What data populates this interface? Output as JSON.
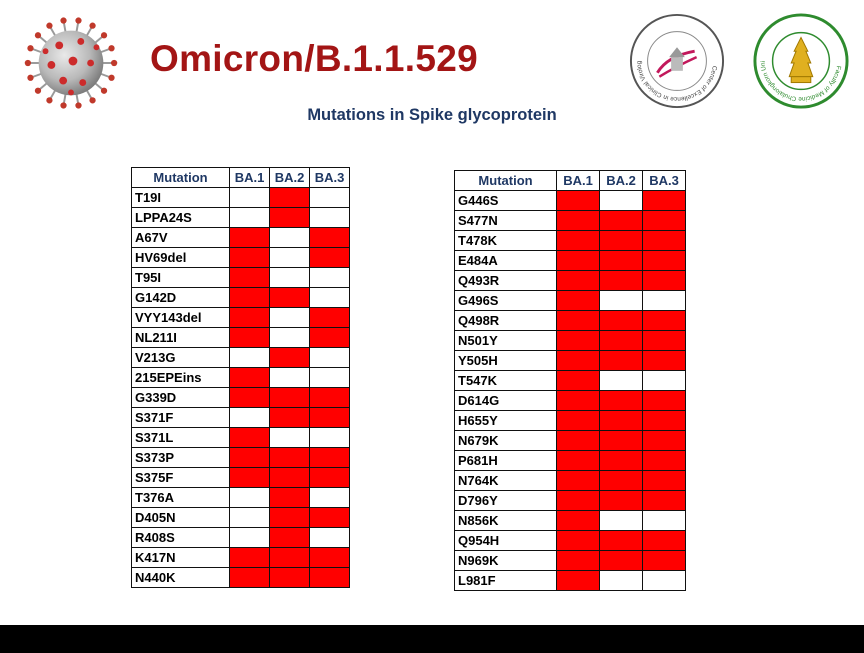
{
  "title": "Omicron/B.1.1.529",
  "subtitle": "Mutations in Spike glycoprotein",
  "colors": {
    "present": "#ff0000",
    "absent": "#ffffff",
    "title": "#a31515",
    "header": "#1f3864"
  },
  "logos": [
    {
      "icon": "virus-icon"
    },
    {
      "icon": "clinical-virology-seal",
      "text": "Center of Excellence in Clinical Virology"
    },
    {
      "icon": "chulalongkorn-medicine-seal",
      "text": "Faculty of Medicine Chulalongkorn University"
    }
  ],
  "columns": [
    "Mutation",
    "BA.1",
    "BA.2",
    "BA.3"
  ],
  "tables": [
    {
      "rows": [
        {
          "mutation": "T19I",
          "present": [
            0,
            1,
            0
          ]
        },
        {
          "mutation": "LPPA24S",
          "present": [
            0,
            1,
            0
          ]
        },
        {
          "mutation": "A67V",
          "present": [
            1,
            0,
            1
          ]
        },
        {
          "mutation": "HV69del",
          "present": [
            1,
            0,
            1
          ]
        },
        {
          "mutation": "T95I",
          "present": [
            1,
            0,
            0
          ]
        },
        {
          "mutation": "G142D",
          "present": [
            1,
            1,
            0
          ]
        },
        {
          "mutation": "VYY143del",
          "present": [
            1,
            0,
            1
          ]
        },
        {
          "mutation": "NL211I",
          "present": [
            1,
            0,
            1
          ]
        },
        {
          "mutation": "V213G",
          "present": [
            0,
            1,
            0
          ]
        },
        {
          "mutation": "215EPEins",
          "present": [
            1,
            0,
            0
          ]
        },
        {
          "mutation": "G339D",
          "present": [
            1,
            1,
            1
          ]
        },
        {
          "mutation": "S371F",
          "present": [
            0,
            1,
            1
          ]
        },
        {
          "mutation": "S371L",
          "present": [
            1,
            0,
            0
          ]
        },
        {
          "mutation": "S373P",
          "present": [
            1,
            1,
            1
          ]
        },
        {
          "mutation": "S375F",
          "present": [
            1,
            1,
            1
          ]
        },
        {
          "mutation": "T376A",
          "present": [
            0,
            1,
            0
          ]
        },
        {
          "mutation": "D405N",
          "present": [
            0,
            1,
            1
          ]
        },
        {
          "mutation": "R408S",
          "present": [
            0,
            1,
            0
          ]
        },
        {
          "mutation": "K417N",
          "present": [
            1,
            1,
            1
          ]
        },
        {
          "mutation": "N440K",
          "present": [
            1,
            1,
            1
          ]
        }
      ]
    },
    {
      "rows": [
        {
          "mutation": "G446S",
          "present": [
            1,
            0,
            1
          ]
        },
        {
          "mutation": "S477N",
          "present": [
            1,
            1,
            1
          ]
        },
        {
          "mutation": "T478K",
          "present": [
            1,
            1,
            1
          ]
        },
        {
          "mutation": "E484A",
          "present": [
            1,
            1,
            1
          ]
        },
        {
          "mutation": "Q493R",
          "present": [
            1,
            1,
            1
          ]
        },
        {
          "mutation": "G496S",
          "present": [
            1,
            0,
            0
          ]
        },
        {
          "mutation": "Q498R",
          "present": [
            1,
            1,
            1
          ]
        },
        {
          "mutation": "N501Y",
          "present": [
            1,
            1,
            1
          ]
        },
        {
          "mutation": "Y505H",
          "present": [
            1,
            1,
            1
          ]
        },
        {
          "mutation": "T547K",
          "present": [
            1,
            0,
            0
          ]
        },
        {
          "mutation": "D614G",
          "present": [
            1,
            1,
            1
          ]
        },
        {
          "mutation": "H655Y",
          "present": [
            1,
            1,
            1
          ]
        },
        {
          "mutation": "N679K",
          "present": [
            1,
            1,
            1
          ]
        },
        {
          "mutation": "P681H",
          "present": [
            1,
            1,
            1
          ]
        },
        {
          "mutation": "N764K",
          "present": [
            1,
            1,
            1
          ]
        },
        {
          "mutation": "D796Y",
          "present": [
            1,
            1,
            1
          ]
        },
        {
          "mutation": "N856K",
          "present": [
            1,
            0,
            0
          ]
        },
        {
          "mutation": "Q954H",
          "present": [
            1,
            1,
            1
          ]
        },
        {
          "mutation": "N969K",
          "present": [
            1,
            1,
            1
          ]
        },
        {
          "mutation": "L981F",
          "present": [
            1,
            0,
            0
          ]
        }
      ]
    }
  ]
}
